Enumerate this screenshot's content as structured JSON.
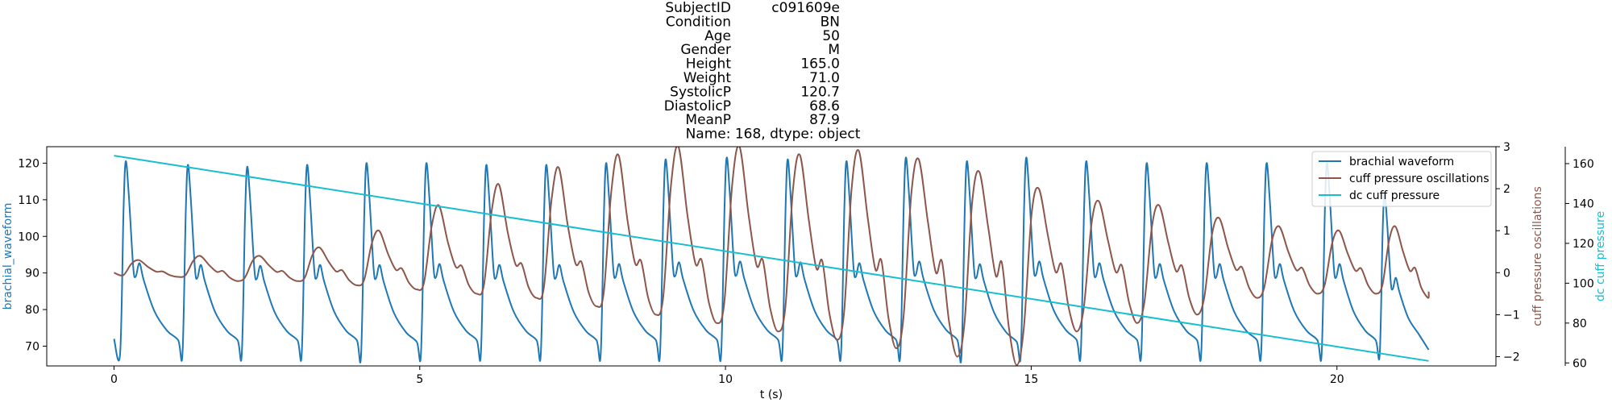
{
  "title_lines": [
    {
      "key": "SubjectID",
      "value": "c091609e"
    },
    {
      "key": "Condition",
      "value": "BN"
    },
    {
      "key": "Age",
      "value": "50"
    },
    {
      "key": "Gender",
      "value": "M"
    },
    {
      "key": "Height",
      "value": "165.0"
    },
    {
      "key": "Weight",
      "value": "71.0"
    },
    {
      "key": "SystolicP",
      "value": "120.7"
    },
    {
      "key": "DiastolicP",
      "value": "68.6"
    },
    {
      "key": "MeanP",
      "value": "87.9"
    }
  ],
  "title_footer": "Name: 168, dtype: object",
  "chart_data": {
    "type": "line",
    "xlabel": "t (s)",
    "xlim": [
      -1.1,
      22.6
    ],
    "x_ticks": [
      0,
      5,
      10,
      15,
      20
    ],
    "axes": [
      {
        "id": "left",
        "label": "brachial_waveform",
        "color": "#1f77b4",
        "ylim": [
          64.6,
          124.5
        ],
        "ticks": [
          70,
          80,
          90,
          100,
          110,
          120
        ]
      },
      {
        "id": "right1",
        "label": "cuff pressure oscillations",
        "color": "#8c564b",
        "ylim": [
          -2.22,
          3.0
        ],
        "ticks": [
          -2,
          -1,
          0,
          1,
          2,
          3
        ]
      },
      {
        "id": "right2",
        "label": "dc cuff pressure",
        "color": "#17becf",
        "ylim": [
          58.5,
          168.5
        ],
        "ticks": [
          60,
          80,
          100,
          120,
          140,
          160
        ]
      }
    ],
    "series": [
      {
        "name": "brachial waveform",
        "axis": "left",
        "color": "#1f77b4",
        "beat_times": [
          0.1,
          1.12,
          2.09,
          3.07,
          4.04,
          5.02,
          6.0,
          6.98,
          7.96,
          8.93,
          9.93,
          10.93,
          11.89,
          12.86,
          13.86,
          14.83,
          15.81,
          16.8,
          17.78,
          18.76,
          19.75,
          20.7
        ],
        "beat_peaks": [
          120.5,
          119.5,
          119.0,
          119.5,
          120.0,
          120.0,
          119.5,
          119.5,
          120.0,
          121.0,
          121.5,
          121.0,
          120.5,
          121.5,
          120.5,
          121.5,
          120.5,
          120.0,
          120.0,
          120.0,
          120.0,
          112.0
        ],
        "beat_troughs": [
          68.0,
          68.0,
          68.0,
          68.0,
          67.5,
          68.0,
          68.0,
          68.0,
          68.0,
          68.0,
          68.0,
          68.0,
          68.0,
          68.0,
          67.5,
          68.0,
          68.0,
          68.0,
          68.0,
          68.0,
          68.0,
          68.0
        ],
        "start_value": 72.0,
        "end_time": 21.5,
        "end_value": 69.0
      },
      {
        "name": "cuff pressure oscillations",
        "axis": "right1",
        "color": "#8c564b",
        "beat_peaks": [
          0.3,
          0.4,
          0.4,
          0.6,
          1.0,
          1.6,
          2.1,
          2.5,
          2.8,
          3.0,
          3.0,
          2.8,
          2.9,
          2.7,
          2.4,
          2.0,
          1.7,
          1.6,
          1.3,
          1.1,
          1.0,
          1.1
        ],
        "beat_troughs": [
          -0.1,
          -0.2,
          -0.2,
          -0.3,
          -0.4,
          -0.5,
          -0.6,
          -0.8,
          -1.0,
          -1.2,
          -1.4,
          -1.6,
          -1.8,
          -2.0,
          -2.2,
          -1.4,
          -1.2,
          -1.0,
          -0.6,
          -0.5,
          -0.5,
          -0.6
        ],
        "start_value": 0.0,
        "end_value": -0.45
      },
      {
        "name": "dc cuff pressure",
        "axis": "right2",
        "color": "#17becf",
        "x": [
          0.0,
          21.5
        ],
        "y": [
          164.0,
          61.0
        ]
      }
    ],
    "legend": {
      "position": "top-right",
      "entries": [
        "brachial waveform",
        "cuff pressure oscillations",
        "dc cuff pressure"
      ]
    },
    "grid": false
  }
}
